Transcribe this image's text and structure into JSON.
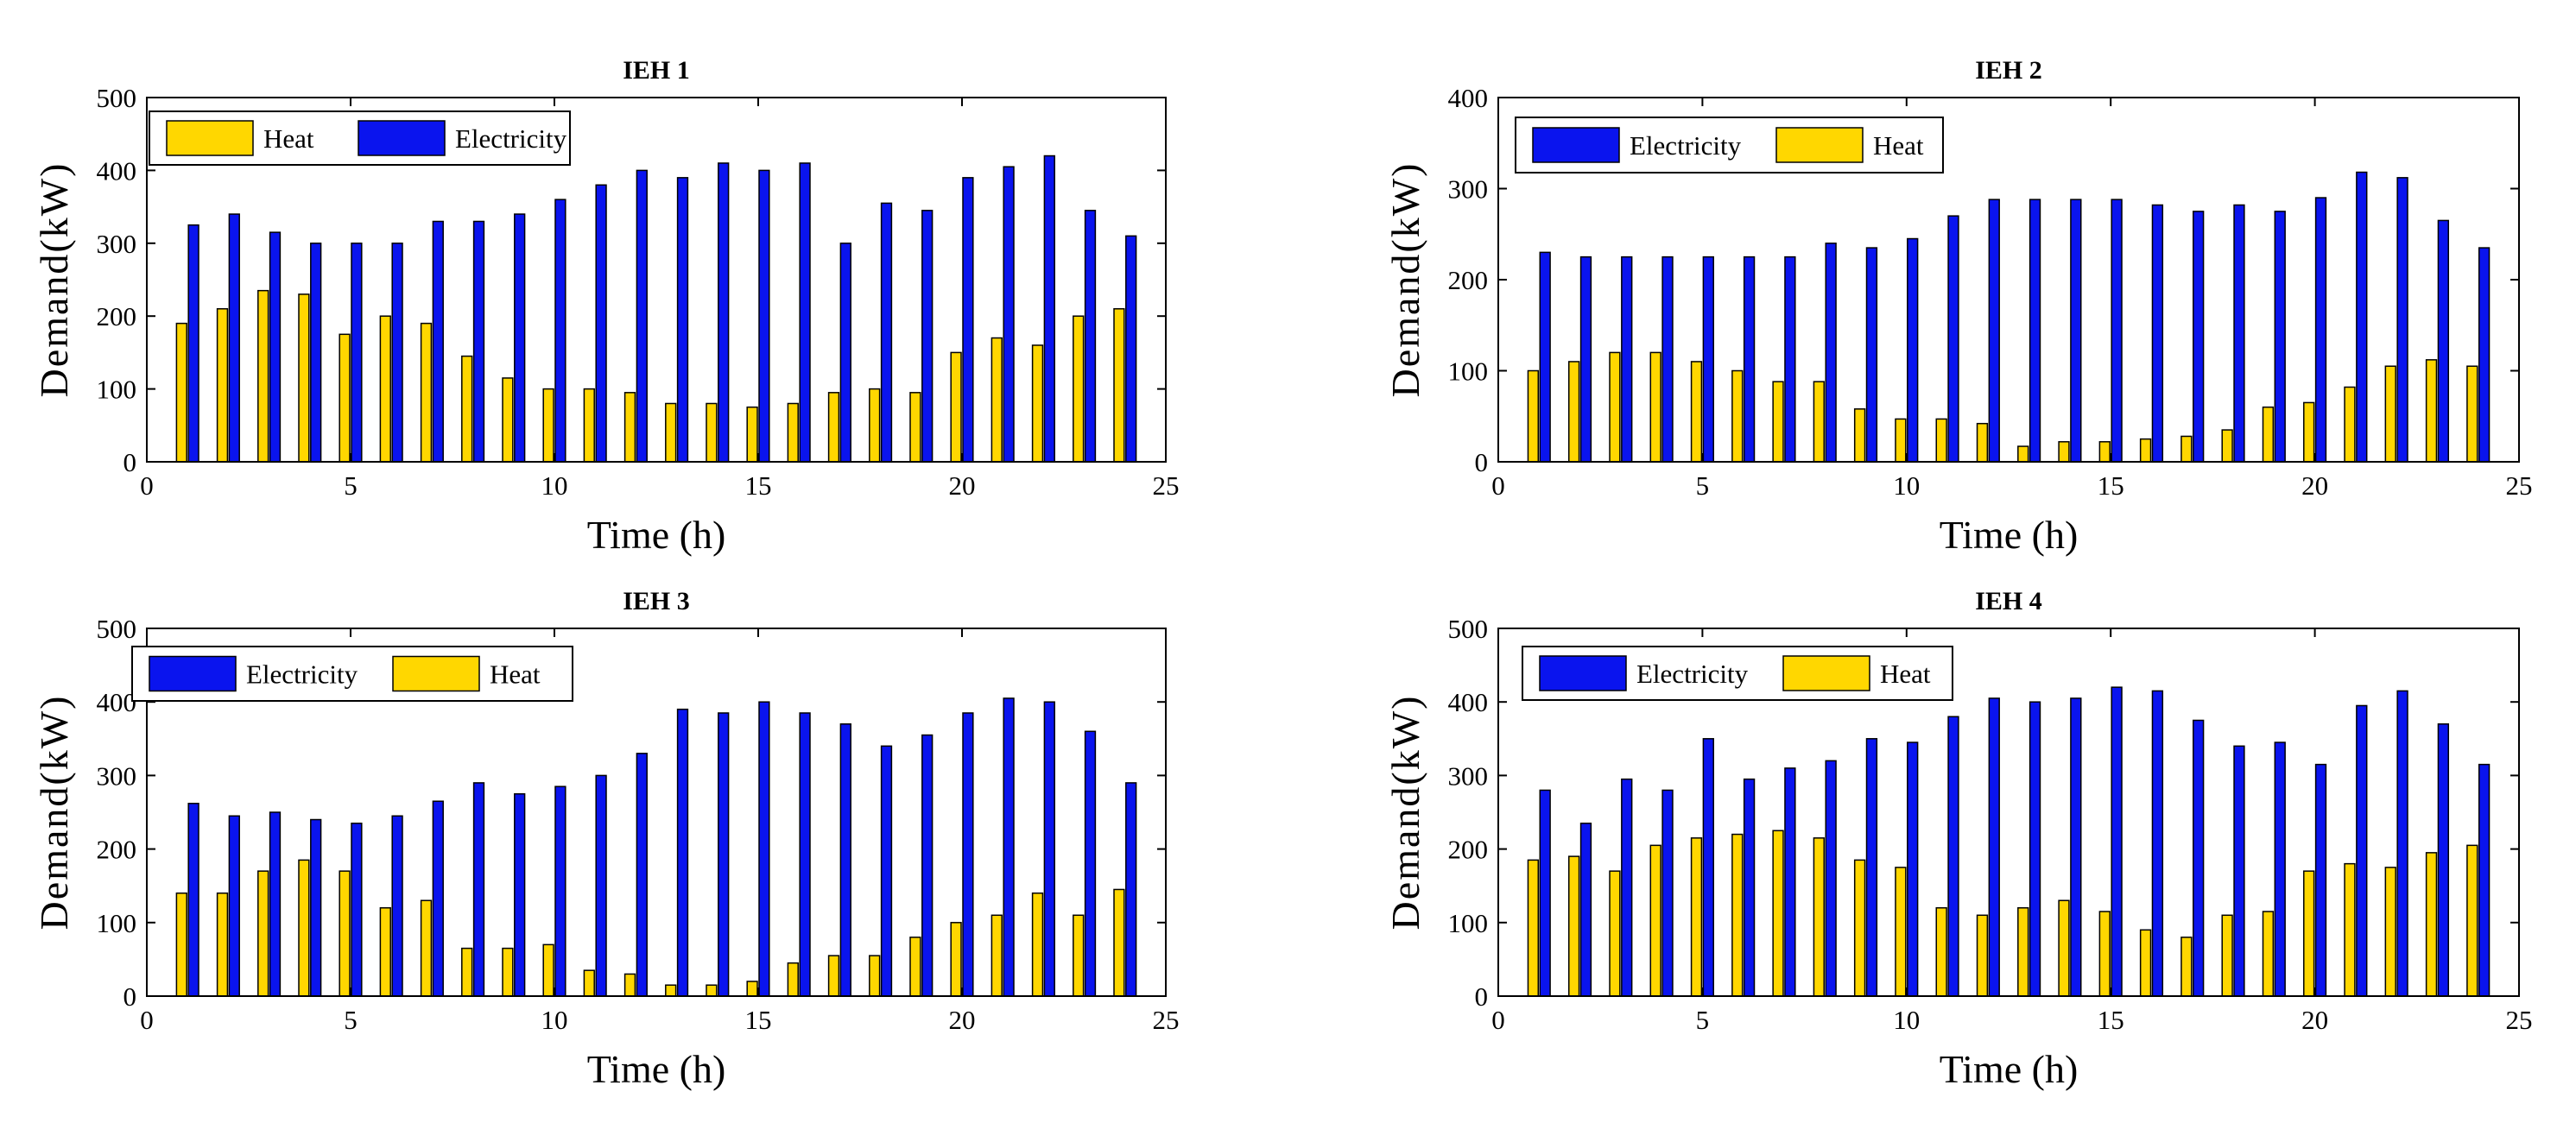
{
  "colors": {
    "Electricity": "#0a14ee",
    "Heat": "#ffd700"
  },
  "chart_data": [
    {
      "type": "bar",
      "title": "IEH 1",
      "xlabel": "Time (h)",
      "ylabel": "Demand(kW)",
      "xlim": [
        0,
        25
      ],
      "ylim": [
        0,
        500
      ],
      "xticks": [
        0,
        5,
        10,
        15,
        20,
        25
      ],
      "yticks": [
        0,
        100,
        200,
        300,
        400,
        500
      ],
      "legend_order": [
        "Heat",
        "Electricity"
      ],
      "categories": [
        1,
        2,
        3,
        4,
        5,
        6,
        7,
        8,
        9,
        10,
        11,
        12,
        13,
        14,
        15,
        16,
        17,
        18,
        19,
        20,
        21,
        22,
        23,
        24
      ],
      "series": [
        {
          "name": "Heat",
          "values": [
            190,
            210,
            235,
            230,
            175,
            200,
            190,
            145,
            115,
            100,
            100,
            95,
            80,
            80,
            75,
            80,
            95,
            100,
            95,
            150,
            170,
            160,
            200,
            210
          ]
        },
        {
          "name": "Electricity",
          "values": [
            325,
            340,
            315,
            300,
            300,
            300,
            330,
            330,
            340,
            360,
            380,
            400,
            390,
            410,
            400,
            410,
            300,
            355,
            345,
            390,
            405,
            420,
            345,
            310
          ]
        }
      ]
    },
    {
      "type": "bar",
      "title": "IEH 2",
      "xlabel": "Time (h)",
      "ylabel": "Demand(kW)",
      "xlim": [
        0,
        25
      ],
      "ylim": [
        0,
        400
      ],
      "xticks": [
        0,
        5,
        10,
        15,
        20,
        25
      ],
      "yticks": [
        0,
        100,
        200,
        300,
        400
      ],
      "legend_order": [
        "Electricity",
        "Heat"
      ],
      "categories": [
        1,
        2,
        3,
        4,
        5,
        6,
        7,
        8,
        9,
        10,
        11,
        12,
        13,
        14,
        15,
        16,
        17,
        18,
        19,
        20,
        21,
        22,
        23,
        24
      ],
      "series": [
        {
          "name": "Heat",
          "values": [
            100,
            110,
            120,
            120,
            110,
            100,
            88,
            88,
            58,
            47,
            47,
            42,
            17,
            22,
            22,
            25,
            28,
            35,
            60,
            65,
            82,
            105,
            112,
            105
          ]
        },
        {
          "name": "Electricity",
          "values": [
            230,
            225,
            225,
            225,
            225,
            225,
            225,
            240,
            235,
            245,
            270,
            288,
            288,
            288,
            288,
            282,
            275,
            282,
            275,
            290,
            318,
            312,
            265,
            235
          ]
        }
      ]
    },
    {
      "type": "bar",
      "title": "IEH 3",
      "xlabel": "Time (h)",
      "ylabel": "Demand(kW)",
      "xlim": [
        0,
        25
      ],
      "ylim": [
        0,
        500
      ],
      "xticks": [
        0,
        5,
        10,
        15,
        20,
        25
      ],
      "yticks": [
        0,
        100,
        200,
        300,
        400,
        500
      ],
      "legend_order": [
        "Electricity",
        "Heat"
      ],
      "categories": [
        1,
        2,
        3,
        4,
        5,
        6,
        7,
        8,
        9,
        10,
        11,
        12,
        13,
        14,
        15,
        16,
        17,
        18,
        19,
        20,
        21,
        22,
        23,
        24
      ],
      "series": [
        {
          "name": "Heat",
          "values": [
            140,
            140,
            170,
            185,
            170,
            120,
            130,
            65,
            65,
            70,
            35,
            30,
            15,
            15,
            20,
            45,
            55,
            55,
            80,
            100,
            110,
            140,
            110,
            145
          ]
        },
        {
          "name": "Electricity",
          "values": [
            262,
            245,
            250,
            240,
            235,
            245,
            265,
            290,
            275,
            285,
            300,
            330,
            390,
            385,
            400,
            385,
            370,
            340,
            355,
            385,
            405,
            400,
            360,
            290
          ]
        }
      ]
    },
    {
      "type": "bar",
      "title": "IEH 4",
      "xlabel": "Time (h)",
      "ylabel": "Demand(kW)",
      "xlim": [
        0,
        25
      ],
      "ylim": [
        0,
        500
      ],
      "xticks": [
        0,
        5,
        10,
        15,
        20,
        25
      ],
      "yticks": [
        0,
        100,
        200,
        300,
        400,
        500
      ],
      "legend_order": [
        "Electricity",
        "Heat"
      ],
      "categories": [
        1,
        2,
        3,
        4,
        5,
        6,
        7,
        8,
        9,
        10,
        11,
        12,
        13,
        14,
        15,
        16,
        17,
        18,
        19,
        20,
        21,
        22,
        23,
        24
      ],
      "series": [
        {
          "name": "Heat",
          "values": [
            185,
            190,
            170,
            205,
            215,
            220,
            225,
            215,
            185,
            175,
            120,
            110,
            120,
            130,
            115,
            90,
            80,
            110,
            115,
            170,
            180,
            175,
            195,
            205
          ]
        },
        {
          "name": "Electricity",
          "values": [
            280,
            235,
            295,
            280,
            350,
            295,
            310,
            320,
            350,
            345,
            380,
            405,
            400,
            405,
            420,
            415,
            375,
            340,
            345,
            315,
            395,
            415,
            370,
            315
          ]
        }
      ]
    }
  ]
}
